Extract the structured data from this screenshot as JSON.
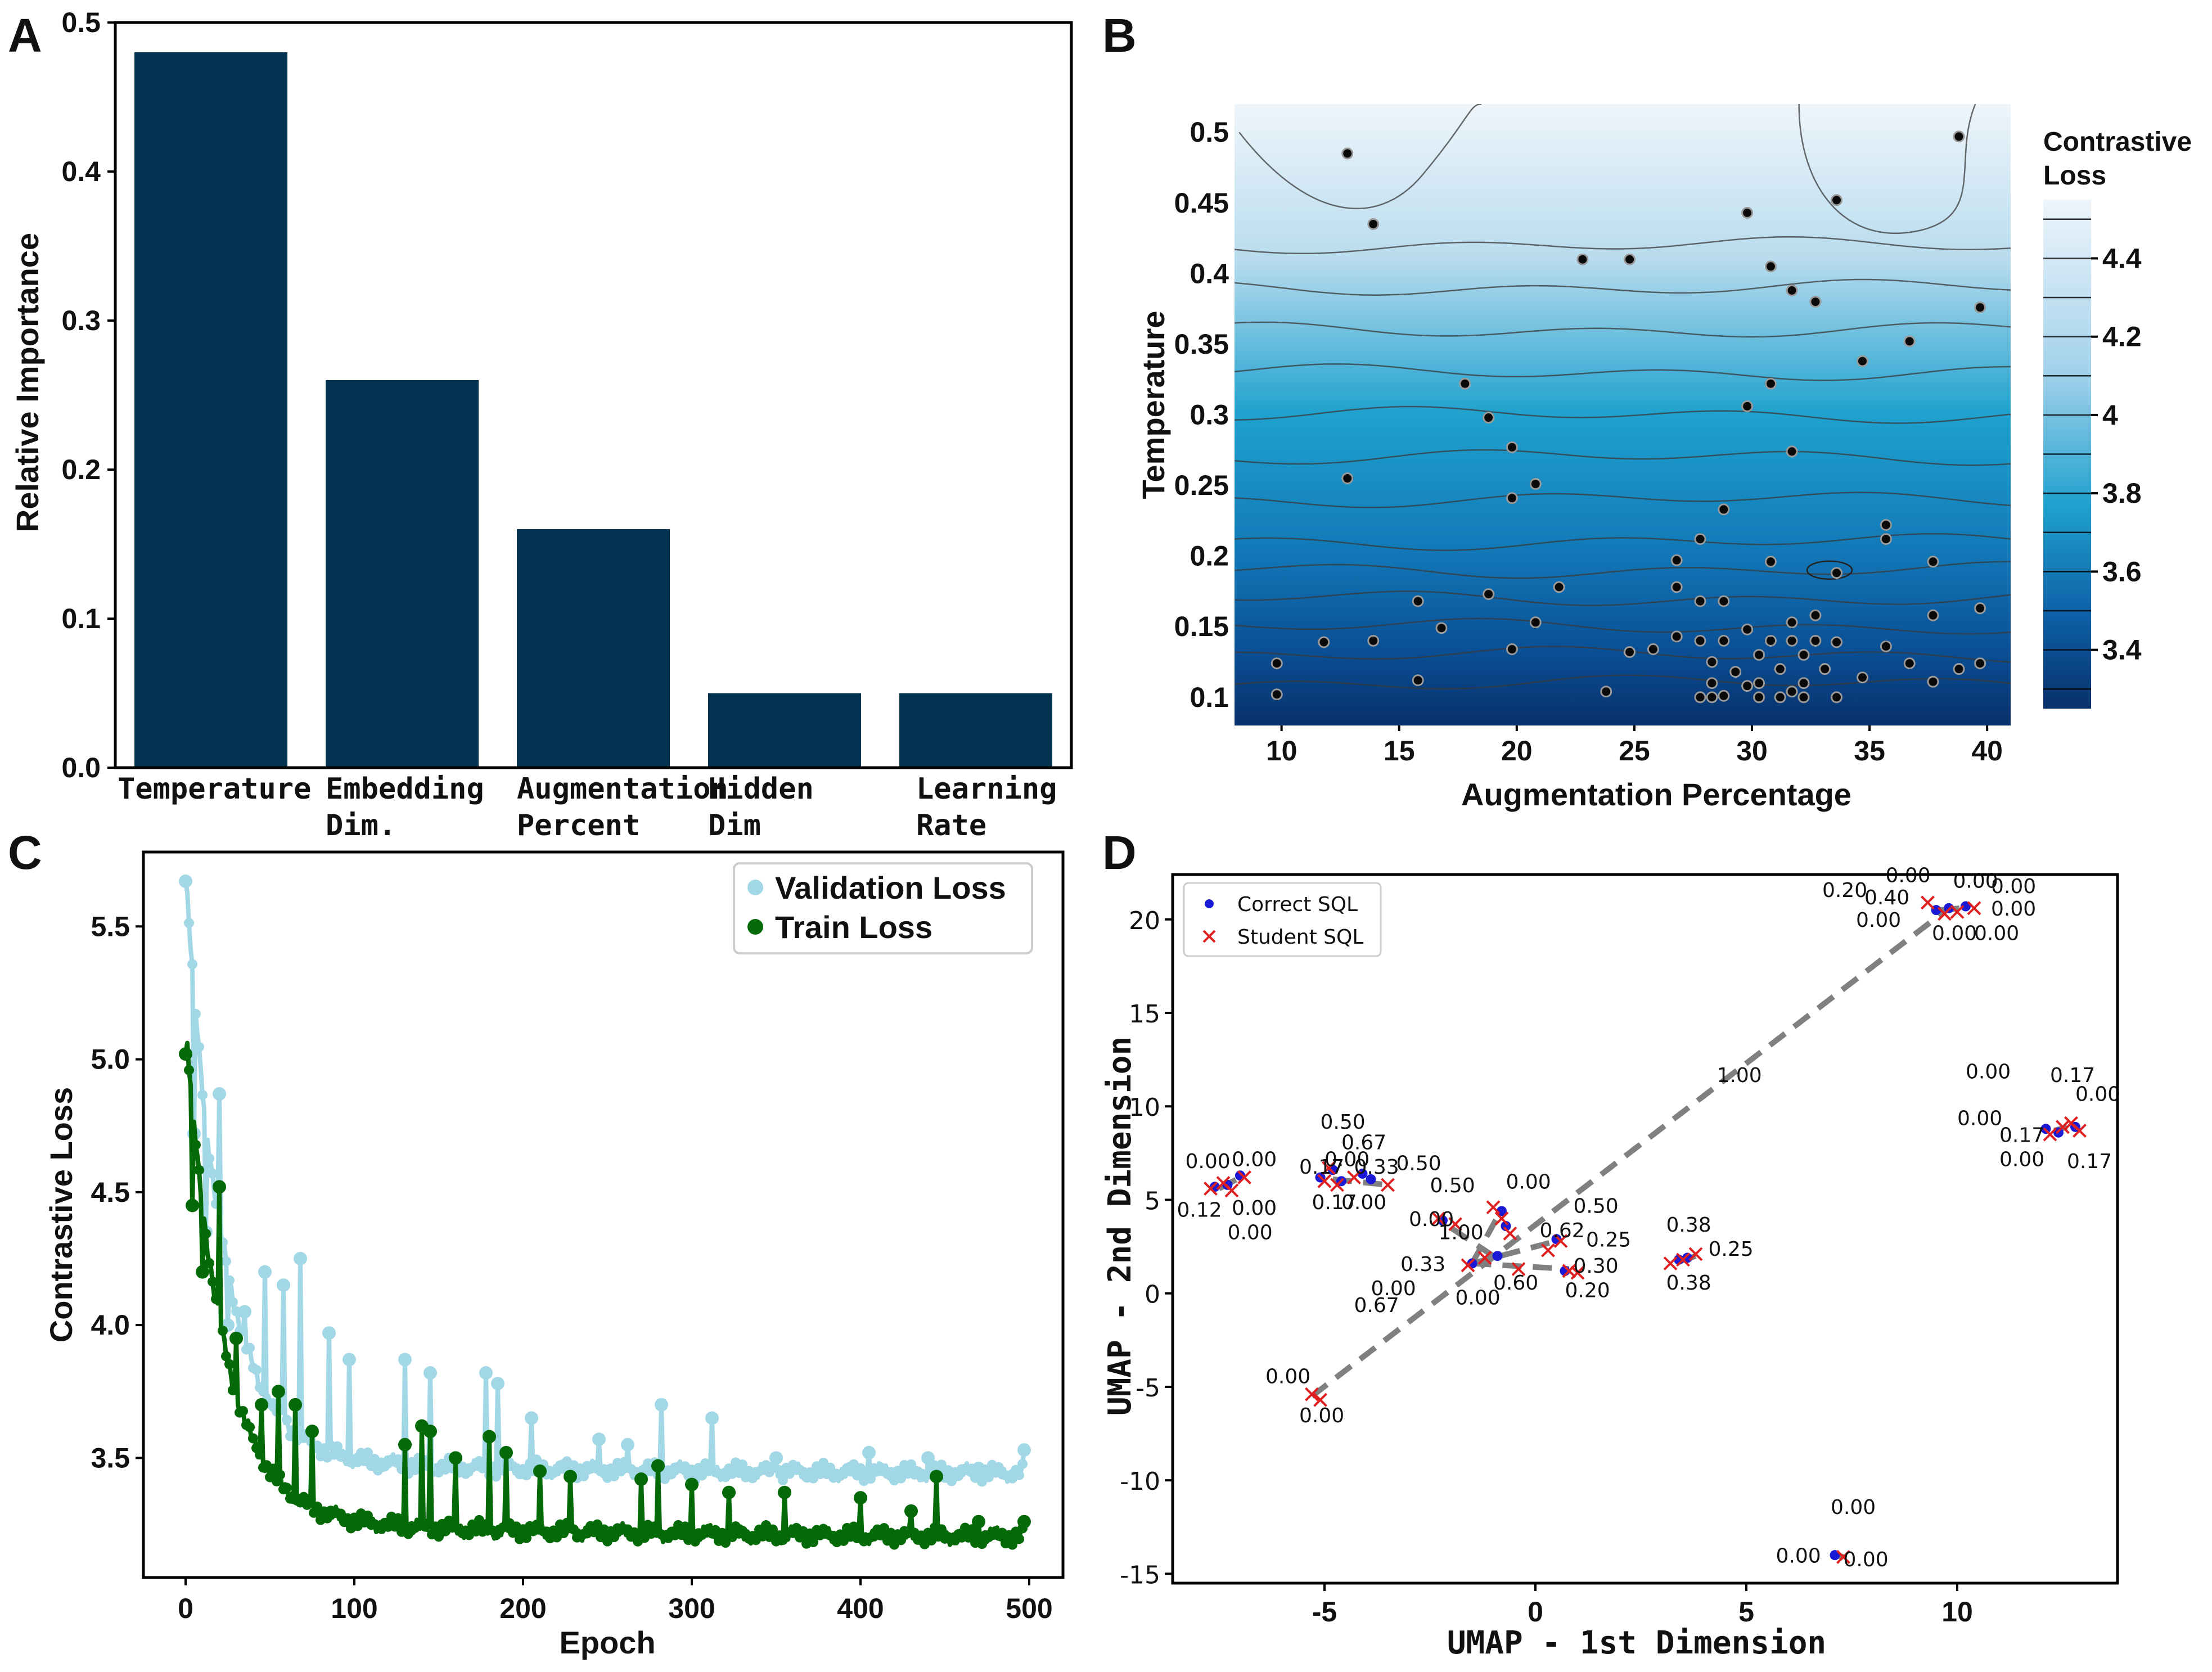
{
  "panels": {
    "A": {
      "letter": "A"
    },
    "B": {
      "letter": "B"
    },
    "C": {
      "letter": "C"
    },
    "D": {
      "letter": "D"
    }
  },
  "chart_data": [
    {
      "id": "A",
      "type": "bar",
      "title": "",
      "categories": [
        [
          "Temperature"
        ],
        [
          "Embedding",
          "Dim."
        ],
        [
          "Augmentation",
          "Percent"
        ],
        [
          "Hidden",
          "Dim"
        ],
        [
          "Learning",
          "Rate"
        ]
      ],
      "values": [
        0.48,
        0.26,
        0.16,
        0.05,
        0.05
      ],
      "xlabel": "",
      "ylabel": "Relative Importance",
      "ylim": [
        0,
        0.5
      ],
      "yticks": [
        "0.0",
        "0.1",
        "0.2",
        "0.3",
        "0.4",
        "0.5"
      ],
      "bar_color": "#023451"
    },
    {
      "id": "B",
      "type": "heatmap",
      "title": "",
      "xlabel": "Augmentation Percentage",
      "ylabel": "Temperature",
      "xlim": [
        8,
        41
      ],
      "ylim": [
        0.08,
        0.52
      ],
      "xticks": [
        "10",
        "15",
        "20",
        "25",
        "30",
        "35",
        "40"
      ],
      "yticks": [
        "0.1",
        "0.15",
        "0.2",
        "0.25",
        "0.3",
        "0.35",
        "0.4",
        "0.45",
        "0.5"
      ],
      "colorbar": {
        "title": [
          "Contrastive",
          "Loss"
        ],
        "range": [
          3.25,
          4.55
        ],
        "ticks": [
          "3.4",
          "3.6",
          "3.8",
          "4",
          "4.2",
          "4.4"
        ],
        "color_low": "#08306b",
        "color_mid": "#1fa1ce",
        "color_high": "#eef5fb"
      },
      "contour_levels_temperature": [
        0.11,
        0.13,
        0.15,
        0.17,
        0.19,
        0.21,
        0.24,
        0.27,
        0.3,
        0.33,
        0.36,
        0.39,
        0.42
      ],
      "points": [
        [
          12.8,
          0.485
        ],
        [
          13.9,
          0.435
        ],
        [
          38.8,
          0.497
        ],
        [
          29.8,
          0.443
        ],
        [
          33.6,
          0.452
        ],
        [
          22.8,
          0.41
        ],
        [
          24.8,
          0.41
        ],
        [
          30.8,
          0.405
        ],
        [
          31.7,
          0.388
        ],
        [
          32.7,
          0.38
        ],
        [
          39.7,
          0.376
        ],
        [
          36.7,
          0.352
        ],
        [
          34.7,
          0.338
        ],
        [
          17.8,
          0.322
        ],
        [
          30.8,
          0.322
        ],
        [
          18.8,
          0.298
        ],
        [
          29.8,
          0.306
        ],
        [
          19.8,
          0.277
        ],
        [
          31.7,
          0.274
        ],
        [
          12.8,
          0.255
        ],
        [
          20.8,
          0.251
        ],
        [
          19.8,
          0.241
        ],
        [
          28.8,
          0.233
        ],
        [
          35.7,
          0.222
        ],
        [
          35.7,
          0.212
        ],
        [
          27.8,
          0.212
        ],
        [
          26.8,
          0.197
        ],
        [
          30.8,
          0.196
        ],
        [
          33.6,
          0.188
        ],
        [
          37.7,
          0.196
        ],
        [
          21.8,
          0.178
        ],
        [
          26.8,
          0.178
        ],
        [
          18.8,
          0.173
        ],
        [
          15.8,
          0.168
        ],
        [
          27.8,
          0.168
        ],
        [
          28.8,
          0.168
        ],
        [
          39.7,
          0.163
        ],
        [
          37.7,
          0.158
        ],
        [
          20.8,
          0.153
        ],
        [
          16.8,
          0.149
        ],
        [
          26.8,
          0.143
        ],
        [
          29.8,
          0.148
        ],
        [
          31.7,
          0.153
        ],
        [
          32.7,
          0.158
        ],
        [
          13.9,
          0.14
        ],
        [
          11.8,
          0.139
        ],
        [
          19.8,
          0.134
        ],
        [
          25.8,
          0.134
        ],
        [
          35.7,
          0.136
        ],
        [
          33.6,
          0.139
        ],
        [
          24.8,
          0.132
        ],
        [
          36.7,
          0.124
        ],
        [
          38.8,
          0.12
        ],
        [
          39.7,
          0.124
        ],
        [
          9.8,
          0.124
        ],
        [
          15.8,
          0.112
        ],
        [
          37.7,
          0.111
        ],
        [
          34.7,
          0.114
        ],
        [
          23.8,
          0.104
        ],
        [
          9.8,
          0.102
        ],
        [
          27.8,
          0.1
        ],
        [
          28.8,
          0.101
        ],
        [
          29.8,
          0.108
        ],
        [
          31.7,
          0.104
        ],
        [
          33.6,
          0.1
        ],
        [
          28.3,
          0.125
        ],
        [
          28.3,
          0.11
        ],
        [
          29.3,
          0.118
        ],
        [
          30.3,
          0.13
        ],
        [
          30.3,
          0.11
        ],
        [
          31.2,
          0.12
        ],
        [
          32.2,
          0.13
        ],
        [
          32.2,
          0.11
        ],
        [
          33.1,
          0.12
        ],
        [
          27.8,
          0.14
        ],
        [
          28.8,
          0.14
        ],
        [
          30.8,
          0.14
        ],
        [
          31.7,
          0.14
        ],
        [
          32.7,
          0.14
        ],
        [
          28.3,
          0.1
        ],
        [
          30.3,
          0.1
        ],
        [
          31.2,
          0.1
        ],
        [
          32.2,
          0.1
        ]
      ]
    },
    {
      "id": "C",
      "type": "line",
      "title": "",
      "xlabel": "Epoch",
      "ylabel": "Contrastive Loss",
      "xlim": [
        -25,
        520
      ],
      "ylim": [
        3.05,
        5.78
      ],
      "xticks": [
        "0",
        "100",
        "200",
        "300",
        "400",
        "500"
      ],
      "yticks": [
        "3.5",
        "4.0",
        "4.5",
        "5.0",
        "5.5"
      ],
      "series": [
        {
          "name": "Validation Loss",
          "color": "#a2d8e6",
          "base": 3.44,
          "amp": 2.2,
          "tau": 22,
          "drift": 0.06,
          "spikes": [
            [
              0,
              5.67
            ],
            [
              5,
              4.72
            ],
            [
              12,
              4.35
            ],
            [
              20,
              4.87
            ],
            [
              25,
              4.0
            ],
            [
              35,
              4.05
            ],
            [
              47,
              4.2
            ],
            [
              58,
              4.15
            ],
            [
              68,
              4.25
            ],
            [
              85,
              3.97
            ],
            [
              97,
              3.87
            ],
            [
              130,
              3.87
            ],
            [
              145,
              3.82
            ],
            [
              178,
              3.82
            ],
            [
              185,
              3.78
            ],
            [
              205,
              3.65
            ],
            [
              245,
              3.57
            ],
            [
              262,
              3.55
            ],
            [
              282,
              3.7
            ],
            [
              312,
              3.65
            ],
            [
              350,
              3.5
            ],
            [
              405,
              3.52
            ],
            [
              440,
              3.5
            ],
            [
              470,
              3.46
            ],
            [
              497,
              3.53
            ]
          ]
        },
        {
          "name": "Train Loss",
          "color": "#046a07",
          "base": 3.2,
          "amp": 1.85,
          "tau": 22,
          "drift": 0.08,
          "spikes": [
            [
              0,
              5.02
            ],
            [
              4,
              4.45
            ],
            [
              10,
              4.2
            ],
            [
              20,
              4.52
            ],
            [
              30,
              3.95
            ],
            [
              45,
              3.7
            ],
            [
              55,
              3.75
            ],
            [
              65,
              3.7
            ],
            [
              75,
              3.6
            ],
            [
              130,
              3.55
            ],
            [
              140,
              3.62
            ],
            [
              145,
              3.6
            ],
            [
              160,
              3.5
            ],
            [
              180,
              3.58
            ],
            [
              190,
              3.52
            ],
            [
              210,
              3.45
            ],
            [
              228,
              3.43
            ],
            [
              270,
              3.42
            ],
            [
              280,
              3.47
            ],
            [
              300,
              3.4
            ],
            [
              322,
              3.37
            ],
            [
              355,
              3.37
            ],
            [
              400,
              3.35
            ],
            [
              430,
              3.3
            ],
            [
              445,
              3.43
            ],
            [
              470,
              3.26
            ],
            [
              497,
              3.26
            ]
          ]
        }
      ]
    },
    {
      "id": "D",
      "type": "scatter",
      "title": "",
      "xlabel": "UMAP - 1st Dimension",
      "ylabel": "UMAP - 2nd Dimension",
      "xlim": [
        -8.6,
        13.8
      ],
      "ylim": [
        -15.5,
        22.4
      ],
      "xticks": [
        "-5",
        "0",
        "5",
        "10"
      ],
      "yticks": [
        "-15",
        "-10",
        "-5",
        "0",
        "5",
        "10",
        "15",
        "20"
      ],
      "legend": [
        "Correct SQL",
        "Student SQL"
      ],
      "correct_color": "#1a1ad6",
      "student_color": "#e02020",
      "line_color": "#808080",
      "pairs": [
        [
          -5.3,
          -5.5,
          9.8,
          20.6
        ],
        [
          -1.5,
          1.6,
          -0.8,
          4.5
        ],
        [
          -1.5,
          1.6,
          0.8,
          1.3
        ],
        [
          -1.5,
          1.6,
          0.5,
          2.8
        ],
        [
          -1.0,
          2.0,
          -2.2,
          3.8
        ],
        [
          3.4,
          1.7,
          3.8,
          2.0
        ],
        [
          -7.5,
          5.6,
          -7.0,
          6.2
        ],
        [
          -4.8,
          6.1,
          -3.5,
          5.8
        ],
        [
          12.3,
          8.7,
          12.6,
          8.9
        ],
        [
          9.6,
          20.5,
          10.1,
          20.6
        ],
        [
          7.1,
          -14.0,
          7.3,
          -14.1
        ]
      ],
      "correct_points": [
        [
          -7.6,
          5.7
        ],
        [
          -7.3,
          5.8
        ],
        [
          -7.0,
          6.3
        ],
        [
          -5.1,
          6.2
        ],
        [
          -4.8,
          6.6
        ],
        [
          -4.6,
          6.0
        ],
        [
          -4.1,
          6.4
        ],
        [
          -3.9,
          6.1
        ],
        [
          -2.2,
          3.9
        ],
        [
          -0.8,
          4.4
        ],
        [
          -0.7,
          3.6
        ],
        [
          -1.5,
          1.6
        ],
        [
          -0.9,
          2.0
        ],
        [
          0.5,
          2.9
        ],
        [
          0.7,
          1.2
        ],
        [
          3.4,
          1.8
        ],
        [
          3.6,
          1.9
        ],
        [
          9.5,
          20.5
        ],
        [
          9.8,
          20.6
        ],
        [
          10.2,
          20.7
        ],
        [
          12.1,
          8.8
        ],
        [
          12.4,
          8.6
        ],
        [
          12.8,
          8.9
        ],
        [
          7.1,
          -14.0
        ]
      ],
      "student_points": [
        [
          -7.7,
          5.6
        ],
        [
          -7.4,
          5.9
        ],
        [
          -7.2,
          5.5
        ],
        [
          -6.9,
          6.2
        ],
        [
          -5.0,
          6.0
        ],
        [
          -4.9,
          6.7
        ],
        [
          -4.7,
          5.8
        ],
        [
          -4.3,
          6.2
        ],
        [
          -3.5,
          5.8
        ],
        [
          -2.3,
          4.0
        ],
        [
          -1.9,
          3.7
        ],
        [
          -1.0,
          4.6
        ],
        [
          -0.8,
          4.0
        ],
        [
          -0.6,
          3.2
        ],
        [
          -1.6,
          1.5
        ],
        [
          -1.2,
          1.9
        ],
        [
          -0.4,
          1.3
        ],
        [
          0.3,
          2.3
        ],
        [
          0.6,
          2.8
        ],
        [
          0.8,
          1.2
        ],
        [
          1.0,
          1.1
        ],
        [
          3.2,
          1.6
        ],
        [
          3.5,
          1.8
        ],
        [
          3.8,
          2.1
        ],
        [
          -5.3,
          -5.4
        ],
        [
          -5.1,
          -5.7
        ],
        [
          9.3,
          20.9
        ],
        [
          9.7,
          20.3
        ],
        [
          10.0,
          20.4
        ],
        [
          10.4,
          20.6
        ],
        [
          12.2,
          8.5
        ],
        [
          12.5,
          8.9
        ],
        [
          12.7,
          9.1
        ],
        [
          12.9,
          8.7
        ],
        [
          7.3,
          -14.1
        ]
      ],
      "annotations": [
        [
          "0.00",
          -8.3,
          6.7
        ],
        [
          "0.00",
          -7.2,
          6.8
        ],
        [
          "0.12",
          -8.5,
          4.1
        ],
        [
          "0.00",
          -7.2,
          4.2
        ],
        [
          "0.00",
          -7.3,
          2.9
        ],
        [
          "0.50",
          -5.1,
          8.8
        ],
        [
          "0.17",
          -5.6,
          6.4
        ],
        [
          "0.67",
          -4.6,
          7.7
        ],
        [
          "0.00",
          -5.0,
          6.8
        ],
        [
          "0.33",
          -4.3,
          6.4
        ],
        [
          "0.50",
          -3.3,
          6.6
        ],
        [
          "0.17",
          -5.3,
          4.5
        ],
        [
          "0.00",
          -4.6,
          4.5
        ],
        [
          "0.50",
          -2.5,
          5.4
        ],
        [
          "0.00",
          -0.7,
          5.6
        ],
        [
          "0.00",
          -3.0,
          3.6
        ],
        [
          "1.00",
          -2.3,
          2.9
        ],
        [
          "0.50",
          0.9,
          4.3
        ],
        [
          "0.62",
          0.1,
          3.0
        ],
        [
          "0.25",
          1.2,
          2.5
        ],
        [
          "0.30",
          0.9,
          1.1
        ],
        [
          "0.20",
          0.7,
          -0.2
        ],
        [
          "0.33",
          -3.2,
          1.2
        ],
        [
          "0.00",
          -3.9,
          -0.1
        ],
        [
          "0.00",
          -1.9,
          -0.6
        ],
        [
          "0.60",
          -1.0,
          0.2
        ],
        [
          "0.67",
          -4.3,
          -1.0
        ],
        [
          "0.38",
          3.1,
          3.3
        ],
        [
          "0.38",
          3.1,
          0.2
        ],
        [
          "0.25",
          4.1,
          2.0
        ],
        [
          "1.00",
          4.3,
          11.3
        ],
        [
          "0.00",
          -6.4,
          -4.8
        ],
        [
          "0.00",
          -5.6,
          -6.9
        ],
        [
          "0.20",
          6.8,
          21.2
        ],
        [
          "0.00",
          8.3,
          22.0
        ],
        [
          "0.40",
          7.8,
          20.8
        ],
        [
          "0.00",
          9.9,
          21.7
        ],
        [
          "0.00",
          10.8,
          21.4
        ],
        [
          "0.00",
          10.8,
          20.2
        ],
        [
          "0.00",
          7.6,
          19.6
        ],
        [
          "0.00",
          9.4,
          18.9
        ],
        [
          "0.00",
          10.4,
          18.9
        ],
        [
          "0.00",
          10.2,
          11.5
        ],
        [
          "0.17",
          12.2,
          11.3
        ],
        [
          "0.00",
          12.8,
          10.3
        ],
        [
          "0.00",
          10.0,
          9.0
        ],
        [
          "0.17",
          11.0,
          8.1
        ],
        [
          "0.00",
          11.0,
          6.8
        ],
        [
          "0.17",
          12.6,
          6.7
        ],
        [
          "0.00",
          7.0,
          -11.8
        ],
        [
          "0.00",
          5.7,
          -14.4
        ],
        [
          "0.00",
          7.3,
          -14.6
        ]
      ]
    }
  ]
}
